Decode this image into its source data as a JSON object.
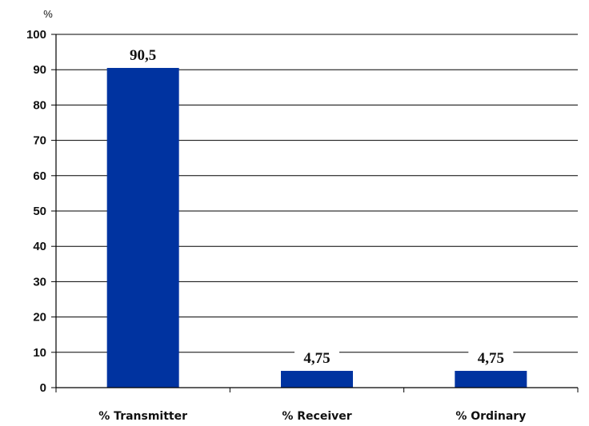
{
  "chart_data": {
    "type": "bar",
    "y_unit_label": "%",
    "categories": [
      "% Transmitter",
      "% Receiver",
      "% Ordinary"
    ],
    "values": [
      90.5,
      4.75,
      4.75
    ],
    "data_labels": [
      "90,5",
      "4,75",
      "4,75"
    ],
    "yticks": [
      0,
      10,
      20,
      30,
      40,
      50,
      60,
      70,
      80,
      90,
      100
    ],
    "ylim": [
      0,
      100
    ],
    "grid": true,
    "bar_color": "#0033A0"
  }
}
